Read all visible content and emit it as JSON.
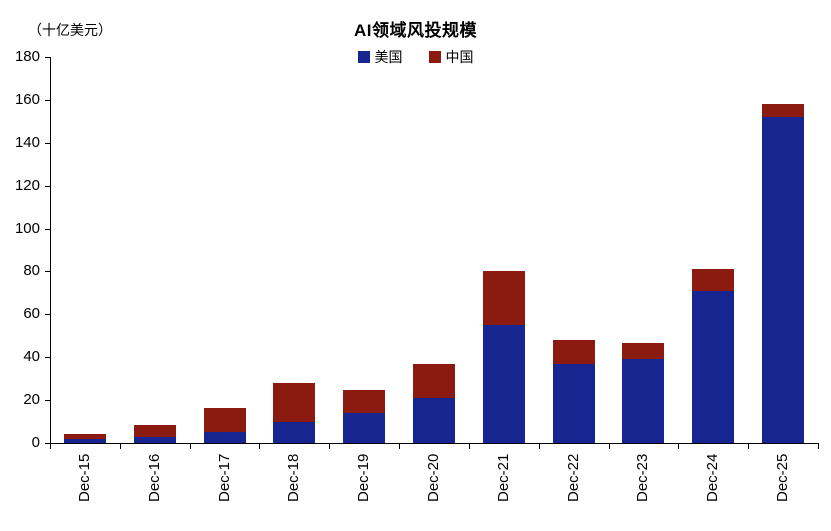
{
  "chart_data": {
    "type": "bar",
    "stacked": true,
    "title": "AI领域风投规模",
    "unit_label": "（十亿美元）",
    "categories": [
      "Dec-15",
      "Dec-16",
      "Dec-17",
      "Dec-18",
      "Dec-19",
      "Dec-20",
      "Dec-21",
      "Dec-22",
      "Dec-23",
      "Dec-24",
      "Dec-25"
    ],
    "series": [
      {
        "name": "美国",
        "color": "#16258f",
        "values": [
          2,
          3,
          5,
          10,
          14,
          21,
          55,
          37,
          39,
          71,
          152
        ]
      },
      {
        "name": "中国",
        "color": "#8b1a10",
        "values": [
          2,
          5.5,
          11.5,
          18,
          10.5,
          16,
          25,
          11,
          7.5,
          10,
          6
        ]
      }
    ],
    "ylim": [
      0,
      180
    ],
    "ytick_step": 20,
    "xlabel": "",
    "ylabel": "（十亿美元）",
    "grid": false,
    "legend_position": "top"
  }
}
